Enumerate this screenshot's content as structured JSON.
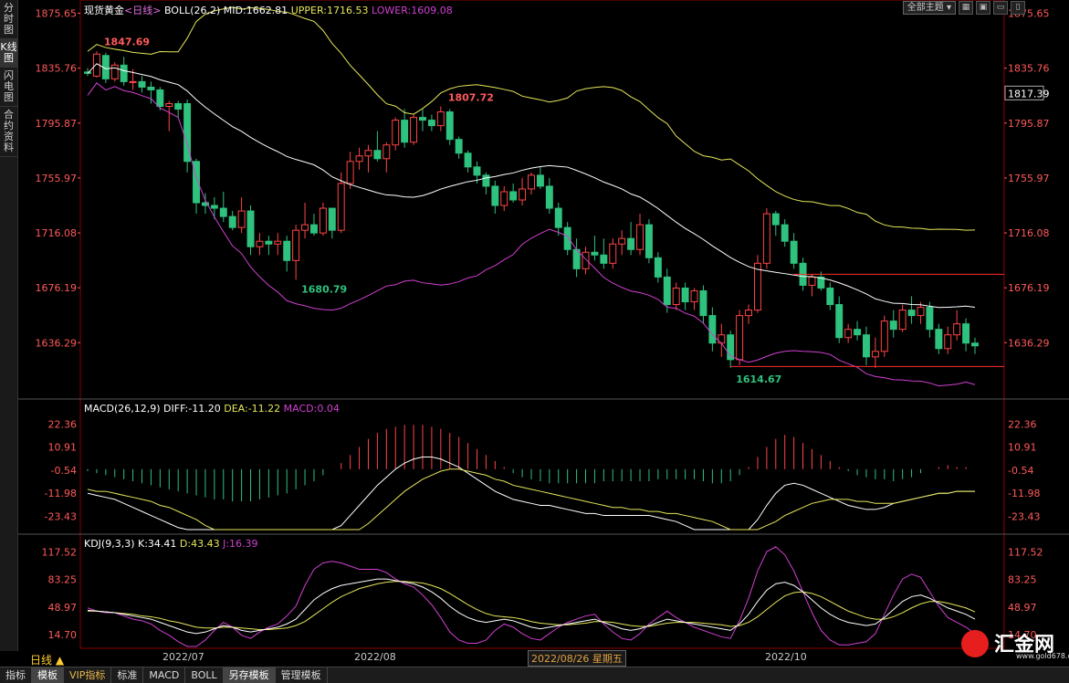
{
  "sidebar": {
    "tabs": [
      "分时图",
      "K线图",
      "闪电图",
      "合约资料"
    ],
    "active": 1
  },
  "header": {
    "title": "现货黄金",
    "period_tag": "<日线>",
    "boll_label": "BOLL(26,2)",
    "mid": "MID:1662.81",
    "upper": "UPPER:1716.53",
    "lower": "LOWER:1609.08",
    "theme_button": "全部主题",
    "window_buttons": [
      "▦",
      "▣",
      "▭",
      "▯"
    ]
  },
  "main_axis": {
    "ticks": [
      "1875.65",
      "1835.76",
      "1795.87",
      "1755.97",
      "1716.08",
      "1676.19",
      "1636.29"
    ],
    "current_price": "1817.39"
  },
  "annotations": {
    "high1": "1847.69",
    "high2": "1807.72",
    "low1": "1680.79",
    "low2": "1614.67"
  },
  "macd": {
    "label": "MACD(26,12,9)",
    "diff": "DIFF:-11.20",
    "dea": "DEA:-11.22",
    "macd": "MACD:0.04",
    "ticks": [
      "22.36",
      "10.91",
      "-0.54",
      "-11.98",
      "-23.43"
    ]
  },
  "kdj": {
    "label": "KDJ(9,3,3)",
    "k": "K:34.41",
    "d": "D:43.43",
    "j": "J:16.39",
    "ticks": [
      "117.52",
      "83.25",
      "48.97",
      "14.70"
    ]
  },
  "xaxis": {
    "period": "日线 ▲",
    "labels": [
      "2022/07",
      "2022/08",
      "2022/10"
    ],
    "highlight": "2022/08/26 星期五"
  },
  "bottom_tabs": [
    "指标",
    "模板",
    "VIP指标",
    "标准",
    "MACD",
    "BOLL",
    "另存模板",
    "管理模板"
  ],
  "logo": {
    "text": "汇金网",
    "url": "www.gold678.com"
  },
  "colors": {
    "up": "#ff4444",
    "down": "#2ec27e",
    "axis": "#ff5a5a",
    "boll_mid": "#ffffff",
    "boll_upper": "#e6e65a",
    "boll_lower": "#d040d0",
    "k": "#ffffff",
    "d": "#e6e65a",
    "j": "#d040d0",
    "frame": "#8b0000"
  },
  "chart_data": {
    "type": "candlestick",
    "price_range": [
      1600,
      1880
    ],
    "candles": [
      [
        1833,
        1836,
        1830,
        1832
      ],
      [
        1830,
        1848,
        1829,
        1846
      ],
      [
        1845,
        1847,
        1825,
        1828
      ],
      [
        1828,
        1840,
        1826,
        1838
      ],
      [
        1838,
        1844,
        1823,
        1826
      ],
      [
        1826,
        1835,
        1820,
        1826
      ],
      [
        1826,
        1830,
        1818,
        1822
      ],
      [
        1822,
        1826,
        1810,
        1820
      ],
      [
        1820,
        1822,
        1805,
        1808
      ],
      [
        1808,
        1812,
        1790,
        1810
      ],
      [
        1810,
        1812,
        1800,
        1806
      ],
      [
        1810,
        1813,
        1760,
        1768
      ],
      [
        1768,
        1770,
        1730,
        1738
      ],
      [
        1738,
        1745,
        1730,
        1736
      ],
      [
        1736,
        1742,
        1726,
        1734
      ],
      [
        1734,
        1746,
        1724,
        1728
      ],
      [
        1728,
        1732,
        1718,
        1720
      ],
      [
        1720,
        1742,
        1716,
        1732
      ],
      [
        1732,
        1736,
        1700,
        1706
      ],
      [
        1706,
        1716,
        1700,
        1710
      ],
      [
        1710,
        1714,
        1700,
        1708
      ],
      [
        1708,
        1716,
        1700,
        1710
      ],
      [
        1710,
        1714,
        1688,
        1696
      ],
      [
        1696,
        1722,
        1682,
        1718
      ],
      [
        1718,
        1738,
        1712,
        1722
      ],
      [
        1722,
        1730,
        1714,
        1716
      ],
      [
        1716,
        1738,
        1714,
        1734
      ],
      [
        1734,
        1732,
        1712,
        1718
      ],
      [
        1718,
        1760,
        1716,
        1752
      ],
      [
        1752,
        1775,
        1748,
        1768
      ],
      [
        1768,
        1778,
        1762,
        1772
      ],
      [
        1772,
        1780,
        1760,
        1776
      ],
      [
        1776,
        1790,
        1768,
        1770
      ],
      [
        1770,
        1782,
        1760,
        1780
      ],
      [
        1780,
        1800,
        1776,
        1798
      ],
      [
        1798,
        1806,
        1778,
        1782
      ],
      [
        1782,
        1802,
        1780,
        1800
      ],
      [
        1800,
        1806,
        1790,
        1798
      ],
      [
        1798,
        1802,
        1790,
        1794
      ],
      [
        1794,
        1808,
        1790,
        1804
      ],
      [
        1804,
        1806,
        1780,
        1784
      ],
      [
        1784,
        1786,
        1770,
        1774
      ],
      [
        1774,
        1776,
        1760,
        1764
      ],
      [
        1764,
        1768,
        1752,
        1758
      ],
      [
        1758,
        1760,
        1744,
        1750
      ],
      [
        1750,
        1754,
        1730,
        1736
      ],
      [
        1736,
        1750,
        1732,
        1746
      ],
      [
        1746,
        1752,
        1738,
        1740
      ],
      [
        1740,
        1756,
        1736,
        1748
      ],
      [
        1748,
        1760,
        1744,
        1758
      ],
      [
        1758,
        1764,
        1748,
        1750
      ],
      [
        1750,
        1756,
        1730,
        1734
      ],
      [
        1734,
        1738,
        1714,
        1720
      ],
      [
        1720,
        1724,
        1700,
        1704
      ],
      [
        1704,
        1712,
        1684,
        1690
      ],
      [
        1690,
        1706,
        1686,
        1702
      ],
      [
        1702,
        1714,
        1696,
        1700
      ],
      [
        1700,
        1712,
        1690,
        1694
      ],
      [
        1694,
        1712,
        1690,
        1708
      ],
      [
        1708,
        1718,
        1700,
        1712
      ],
      [
        1712,
        1724,
        1700,
        1704
      ],
      [
        1704,
        1730,
        1700,
        1722
      ],
      [
        1722,
        1726,
        1694,
        1698
      ],
      [
        1698,
        1702,
        1680,
        1684
      ],
      [
        1684,
        1690,
        1658,
        1664
      ],
      [
        1664,
        1680,
        1660,
        1676
      ],
      [
        1676,
        1680,
        1660,
        1666
      ],
      [
        1666,
        1676,
        1660,
        1674
      ],
      [
        1674,
        1678,
        1650,
        1656
      ],
      [
        1656,
        1662,
        1630,
        1636
      ],
      [
        1636,
        1650,
        1626,
        1642
      ],
      [
        1642,
        1645,
        1618,
        1624
      ],
      [
        1624,
        1660,
        1620,
        1656
      ],
      [
        1656,
        1664,
        1650,
        1660
      ],
      [
        1660,
        1700,
        1658,
        1694
      ],
      [
        1694,
        1734,
        1690,
        1730
      ],
      [
        1730,
        1732,
        1714,
        1722
      ],
      [
        1722,
        1726,
        1706,
        1710
      ],
      [
        1710,
        1716,
        1690,
        1694
      ],
      [
        1694,
        1698,
        1674,
        1678
      ],
      [
        1678,
        1686,
        1670,
        1684
      ],
      [
        1684,
        1688,
        1674,
        1676
      ],
      [
        1676,
        1680,
        1660,
        1664
      ],
      [
        1664,
        1670,
        1636,
        1640
      ],
      [
        1640,
        1650,
        1636,
        1646
      ],
      [
        1646,
        1652,
        1638,
        1642
      ],
      [
        1642,
        1648,
        1620,
        1626
      ],
      [
        1626,
        1640,
        1618,
        1630
      ],
      [
        1630,
        1656,
        1626,
        1652
      ],
      [
        1652,
        1660,
        1640,
        1646
      ],
      [
        1646,
        1664,
        1644,
        1660
      ],
      [
        1660,
        1670,
        1650,
        1656
      ],
      [
        1656,
        1666,
        1650,
        1662
      ],
      [
        1662,
        1666,
        1640,
        1646
      ],
      [
        1646,
        1650,
        1628,
        1632
      ],
      [
        1632,
        1648,
        1628,
        1642
      ],
      [
        1642,
        1660,
        1638,
        1650
      ],
      [
        1650,
        1654,
        1630,
        1636
      ],
      [
        1636,
        1640,
        1628,
        1634
      ]
    ],
    "macd_hist": [
      -1,
      -2,
      -3,
      -4,
      -5,
      -6,
      -7,
      -8,
      -9,
      -10,
      -11,
      -12,
      -13,
      -14,
      -15,
      -15,
      -16,
      -16,
      -16,
      -15,
      -14,
      -13,
      -12,
      -10,
      -8,
      -6,
      -3,
      0,
      3,
      7,
      11,
      15,
      18,
      20,
      21,
      22,
      22,
      22,
      21,
      20,
      18,
      16,
      13,
      10,
      7,
      4,
      1,
      -2,
      -4,
      -5,
      -6,
      -7,
      -7,
      -7,
      -7,
      -7,
      -7,
      -6,
      -6,
      -6,
      -6,
      -6,
      -6,
      -5,
      -5,
      -5,
      -5,
      -5,
      -6,
      -7,
      -7,
      -6,
      -3,
      1,
      6,
      11,
      15,
      17,
      16,
      13,
      10,
      7,
      4,
      1,
      -1,
      -3,
      -4,
      -5,
      -5,
      -6,
      -5,
      -4,
      -2,
      0,
      1,
      2,
      1,
      1,
      0
    ],
    "macd_diff": [
      -12,
      -13,
      -14,
      -15,
      -17,
      -19,
      -21,
      -23,
      -25,
      -27,
      -29,
      -32,
      -36,
      -40,
      -43,
      -46,
      -48,
      -50,
      -51,
      -52,
      -52,
      -51,
      -50,
      -48,
      -45,
      -41,
      -37,
      -33,
      -28,
      -23,
      -18,
      -13,
      -8,
      -4,
      0,
      3,
      5,
      6,
      6,
      5,
      3,
      1,
      -2,
      -5,
      -8,
      -11,
      -13,
      -15,
      -16,
      -17,
      -18,
      -18,
      -19,
      -20,
      -21,
      -22,
      -22,
      -23,
      -23,
      -23,
      -23,
      -23,
      -23,
      -24,
      -25,
      -26,
      -28,
      -30,
      -32,
      -35,
      -38,
      -40,
      -38,
      -33,
      -25,
      -18,
      -12,
      -8,
      -7,
      -8,
      -10,
      -12,
      -14,
      -16,
      -18,
      -19,
      -20,
      -20,
      -19,
      -17,
      -16,
      -15,
      -14,
      -13,
      -12,
      -12,
      -11,
      -11,
      -11
    ],
    "macd_dea": [
      -10,
      -11,
      -11,
      -12,
      -13,
      -14,
      -15,
      -16,
      -18,
      -19,
      -21,
      -23,
      -25,
      -28,
      -30,
      -33,
      -35,
      -38,
      -40,
      -42,
      -44,
      -45,
      -46,
      -46,
      -46,
      -45,
      -43,
      -41,
      -38,
      -35,
      -31,
      -27,
      -23,
      -19,
      -15,
      -11,
      -8,
      -5,
      -3,
      -1,
      0,
      0,
      -1,
      -2,
      -3,
      -5,
      -6,
      -8,
      -9,
      -10,
      -11,
      -12,
      -13,
      -14,
      -15,
      -16,
      -17,
      -18,
      -19,
      -19,
      -20,
      -20,
      -21,
      -21,
      -22,
      -22,
      -23,
      -24,
      -25,
      -26,
      -28,
      -30,
      -31,
      -31,
      -30,
      -28,
      -26,
      -23,
      -21,
      -19,
      -17,
      -16,
      -15,
      -15,
      -15,
      -16,
      -16,
      -17,
      -17,
      -17,
      -16,
      -15,
      -14,
      -13,
      -12,
      -12,
      -11,
      -11,
      -11
    ],
    "kdj_k": [
      45,
      44,
      43,
      42,
      40,
      38,
      36,
      34,
      30,
      26,
      22,
      18,
      16,
      18,
      22,
      26,
      24,
      20,
      18,
      20,
      22,
      24,
      28,
      34,
      46,
      58,
      66,
      72,
      76,
      78,
      80,
      82,
      84,
      84,
      82,
      80,
      78,
      74,
      68,
      60,
      50,
      42,
      36,
      32,
      30,
      32,
      34,
      32,
      28,
      24,
      22,
      24,
      26,
      28,
      30,
      32,
      34,
      30,
      26,
      22,
      20,
      22,
      26,
      30,
      34,
      32,
      30,
      28,
      26,
      24,
      22,
      20,
      28,
      40,
      56,
      70,
      78,
      80,
      76,
      68,
      58,
      48,
      40,
      34,
      30,
      28,
      26,
      28,
      36,
      46,
      56,
      62,
      64,
      60,
      54,
      48,
      44,
      40,
      34
    ],
    "kdj_d": [
      44,
      44,
      43,
      42,
      41,
      40,
      38,
      37,
      35,
      32,
      30,
      27,
      24,
      23,
      23,
      24,
      24,
      23,
      22,
      21,
      21,
      22,
      23,
      26,
      31,
      39,
      47,
      55,
      62,
      67,
      72,
      75,
      78,
      80,
      81,
      81,
      80,
      79,
      76,
      72,
      66,
      59,
      52,
      46,
      41,
      38,
      37,
      36,
      34,
      31,
      29,
      28,
      27,
      27,
      28,
      29,
      31,
      31,
      30,
      28,
      26,
      25,
      25,
      27,
      29,
      30,
      30,
      30,
      29,
      28,
      27,
      25,
      26,
      30,
      37,
      46,
      55,
      63,
      67,
      68,
      66,
      62,
      56,
      50,
      44,
      40,
      36,
      34,
      34,
      37,
      42,
      48,
      53,
      56,
      56,
      54,
      51,
      48,
      43
    ],
    "kdj_j": [
      48,
      44,
      42,
      42,
      38,
      34,
      32,
      28,
      20,
      14,
      6,
      0,
      0,
      8,
      20,
      30,
      24,
      14,
      10,
      18,
      24,
      28,
      38,
      50,
      76,
      96,
      104,
      106,
      104,
      100,
      96,
      96,
      96,
      92,
      84,
      78,
      74,
      64,
      52,
      36,
      18,
      8,
      4,
      4,
      8,
      20,
      28,
      24,
      16,
      10,
      8,
      16,
      24,
      30,
      34,
      38,
      40,
      28,
      18,
      10,
      8,
      16,
      28,
      36,
      44,
      36,
      30,
      24,
      20,
      16,
      12,
      10,
      32,
      60,
      94,
      118,
      124,
      114,
      94,
      68,
      42,
      20,
      8,
      2,
      2,
      4,
      6,
      16,
      40,
      64,
      84,
      90,
      86,
      68,
      50,
      36,
      30,
      24,
      16
    ]
  }
}
